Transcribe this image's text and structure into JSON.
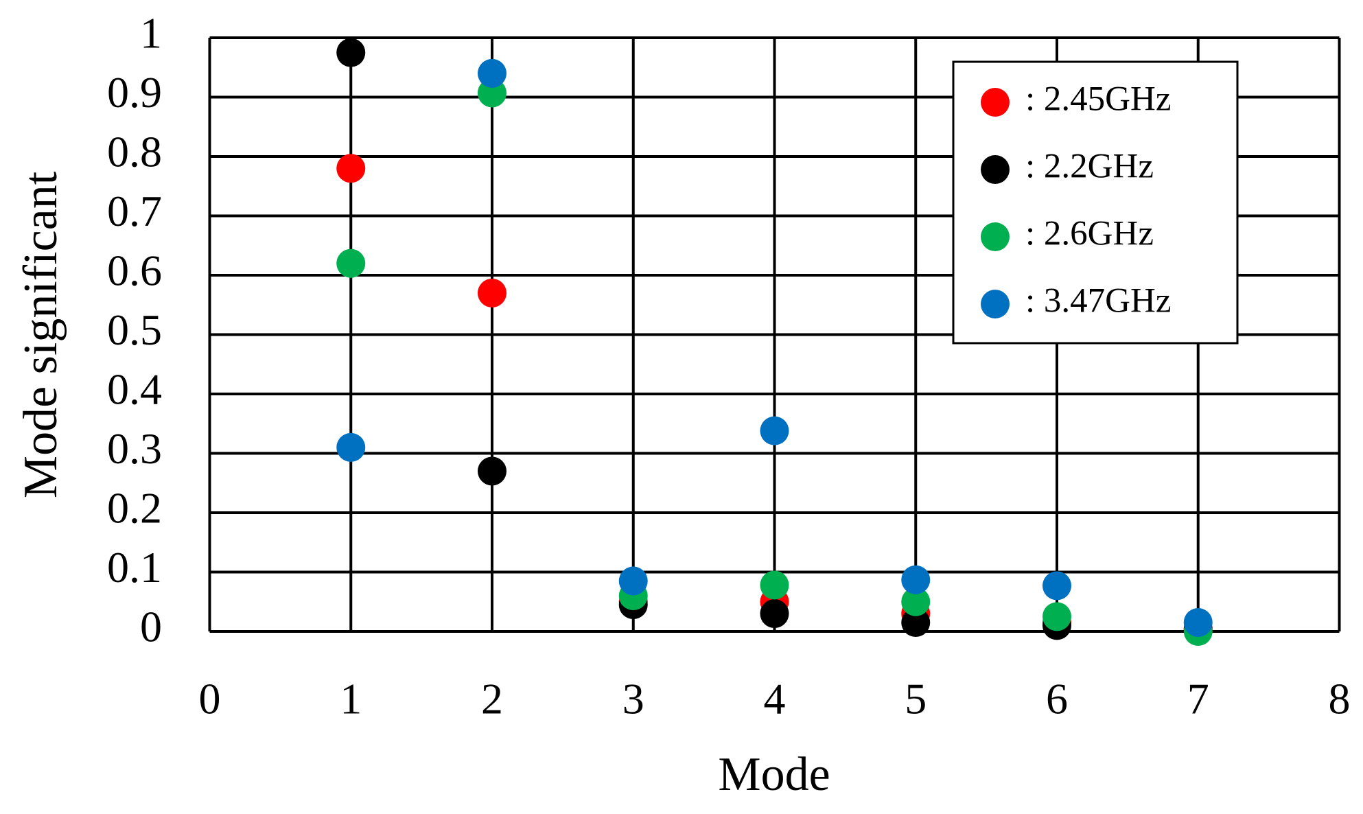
{
  "chart_data": {
    "type": "scatter",
    "x_label": "Mode",
    "y_label": "Mode significant",
    "xlim": [
      0,
      8
    ],
    "xticks": [
      0,
      1,
      2,
      3,
      4,
      5,
      6,
      7,
      8
    ],
    "ylim": [
      0,
      1
    ],
    "yticks": [
      0,
      0.1,
      0.2,
      0.3,
      0.4,
      0.5,
      0.6,
      0.7,
      0.8,
      0.9,
      1
    ],
    "grid": true,
    "legend": "upper right",
    "x": [
      1,
      2,
      3,
      4,
      5,
      6,
      7
    ],
    "series": [
      {
        "name": ": 2.45GHz",
        "color": "#ff0000",
        "values": [
          0.78,
          0.57,
          0.05,
          0.05,
          0.03,
          0.015,
          0.005
        ]
      },
      {
        "name": ": 2.2GHz",
        "color": "#000000",
        "values": [
          0.975,
          0.27,
          0.045,
          0.03,
          0.015,
          0.01,
          0.003
        ]
      },
      {
        "name": ": 2.6GHz",
        "color": "#00b050",
        "values": [
          0.62,
          0.907,
          0.06,
          0.078,
          0.05,
          0.025,
          0
        ]
      },
      {
        "name": ": 3.47GHz",
        "color": "#0070c0",
        "values": [
          0.31,
          0.94,
          0.085,
          0.338,
          0.087,
          0.077,
          0.015
        ]
      }
    ]
  }
}
